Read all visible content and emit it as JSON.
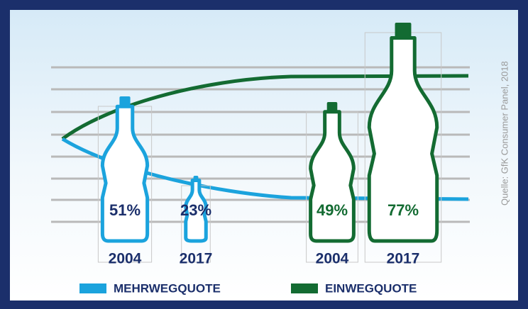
{
  "chart_data": {
    "type": "bar",
    "categories": [
      "2004",
      "2017"
    ],
    "series": [
      {
        "name": "MEHRWEGQUOTE",
        "color": "#1ba3dd",
        "values": [
          51,
          23
        ],
        "value_labels": [
          "51%",
          "23%"
        ]
      },
      {
        "name": "EINWEGQUOTE",
        "color": "#136b32",
        "values": [
          49,
          77
        ],
        "value_labels": [
          "49%",
          "77%"
        ]
      }
    ],
    "source": "Quelle: GfK Consumer Panel, 2018"
  }
}
